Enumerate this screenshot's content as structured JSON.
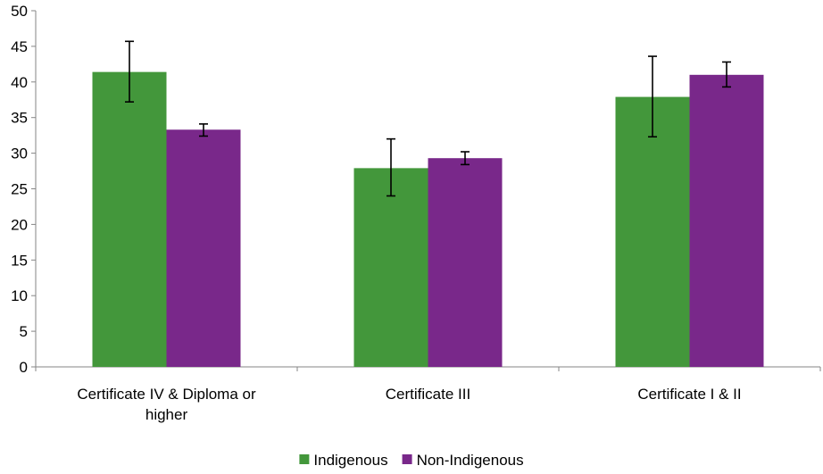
{
  "chart_data": {
    "type": "bar",
    "categories": [
      [
        "Certificate IV & Diploma or",
        "higher"
      ],
      [
        "Certificate III"
      ],
      [
        "Certificate I & II"
      ]
    ],
    "series": [
      {
        "name": "Indigenous",
        "color": "#43973b",
        "values": [
          41.4,
          27.9,
          37.9
        ],
        "error_low": [
          37.2,
          24.0,
          32.3
        ],
        "error_high": [
          45.7,
          32.0,
          43.6
        ]
      },
      {
        "name": "Non-Indigenous",
        "color": "#79288a",
        "values": [
          33.3,
          29.3,
          41.0
        ],
        "error_low": [
          32.4,
          28.4,
          39.3
        ],
        "error_high": [
          34.1,
          30.2,
          42.8
        ]
      }
    ],
    "ylim": [
      0,
      50
    ],
    "yticks": [
      0,
      5,
      10,
      15,
      20,
      25,
      30,
      35,
      40,
      45,
      50
    ],
    "grid": false,
    "legend_position": "bottom"
  }
}
